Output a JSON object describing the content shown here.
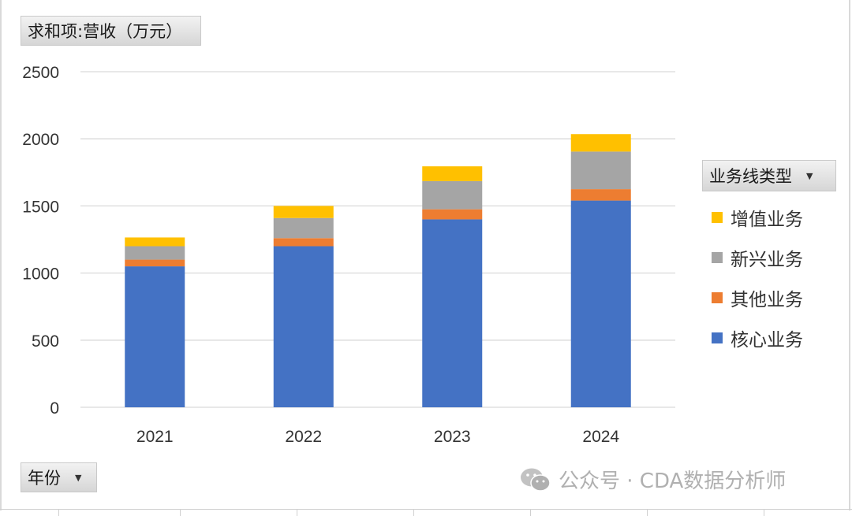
{
  "pivot": {
    "value_field": "求和项:营收（万元）",
    "legend_field": "业务线类型",
    "row_field": "年份",
    "dropdown_icon": "triangle-down-icon"
  },
  "chart_data": {
    "type": "bar",
    "stacked": true,
    "categories": [
      "2021",
      "2022",
      "2023",
      "2024"
    ],
    "series": [
      {
        "name": "核心业务",
        "color": "#4472C4",
        "values": [
          1050,
          1200,
          1400,
          1540
        ]
      },
      {
        "name": "其他业务",
        "color": "#ED7D31",
        "values": [
          50,
          60,
          75,
          85
        ]
      },
      {
        "name": "新兴业务",
        "color": "#A5A5A5",
        "values": [
          100,
          150,
          210,
          280
        ]
      },
      {
        "name": "增值业务",
        "color": "#FFC000",
        "values": [
          65,
          90,
          110,
          130
        ]
      }
    ],
    "ylim": [
      0,
      2500
    ],
    "yticks": [
      0,
      500,
      1000,
      1500,
      2000,
      2500
    ],
    "grid": true,
    "legend_position": "right"
  },
  "legend_order": [
    3,
    2,
    1,
    0
  ],
  "watermark": {
    "icon": "wechat-icon",
    "text": "公众号 · CDA数据分析师"
  }
}
